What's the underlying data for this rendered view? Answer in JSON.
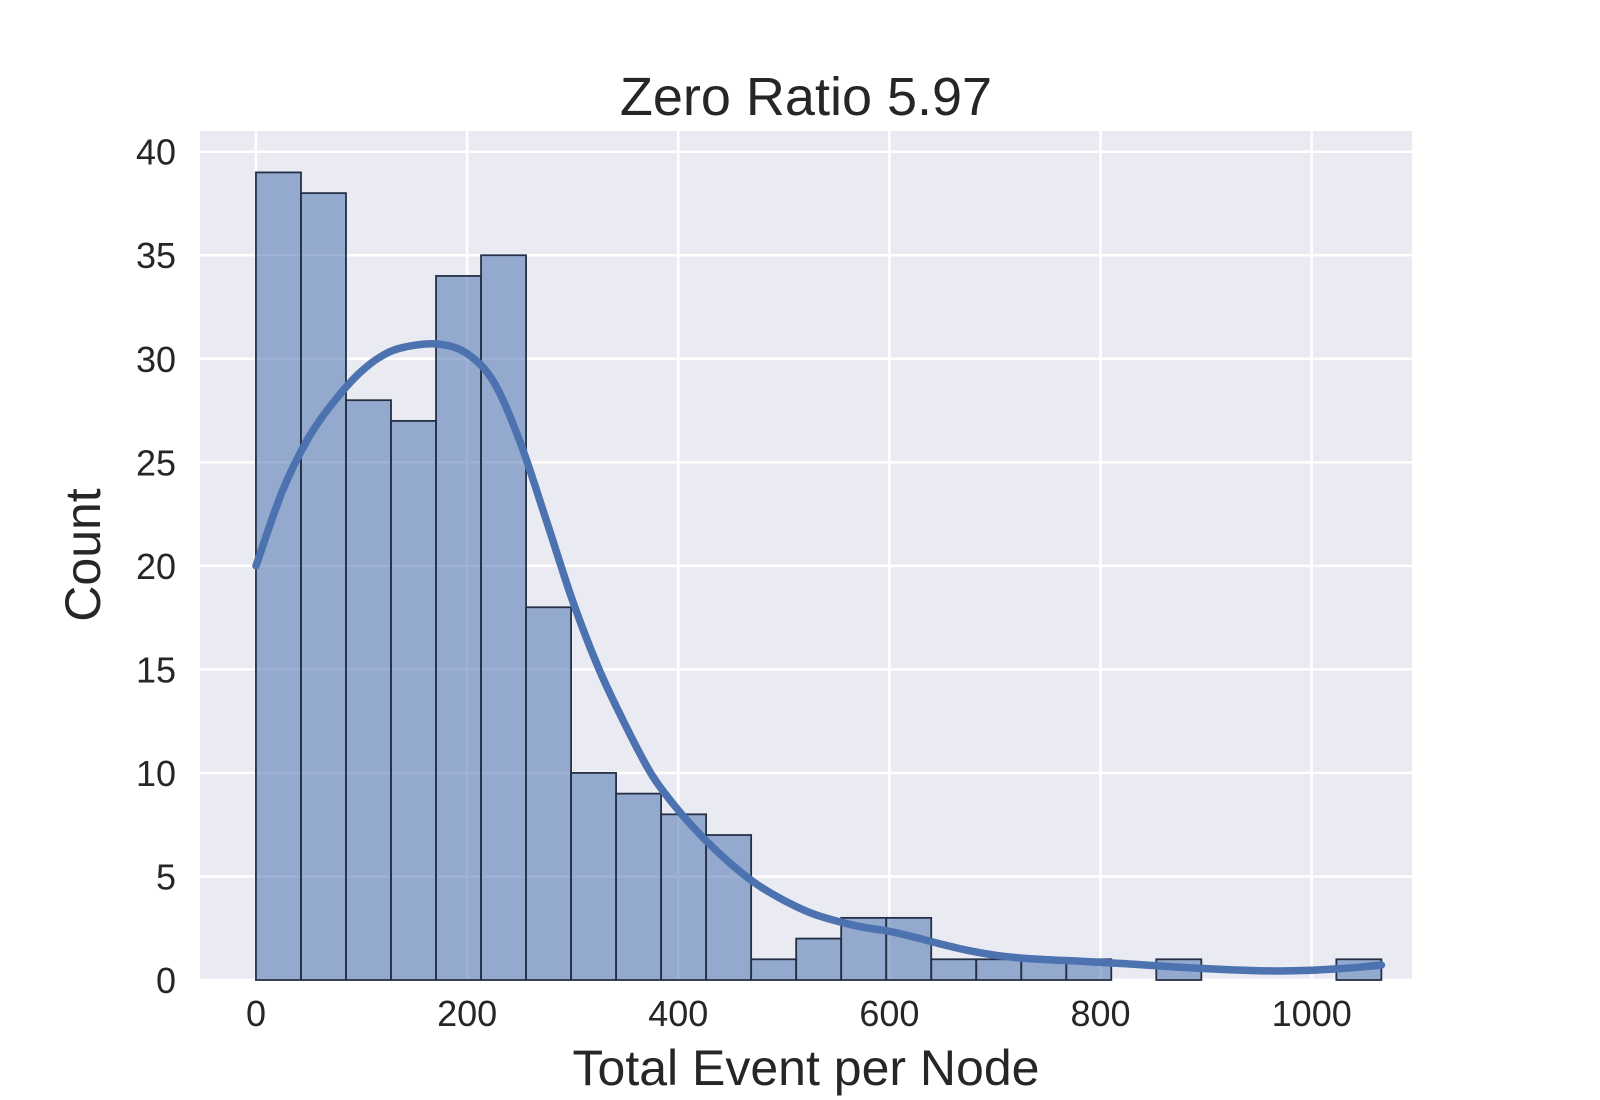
{
  "figure": {
    "background": "#ffffff"
  },
  "chart_data": {
    "type": "histogram+kde",
    "title": "Zero Ratio 5.97",
    "xlabel": "Total Event per Node",
    "ylabel": "Count",
    "xlim": [
      -53,
      1095
    ],
    "ylim": [
      0,
      41
    ],
    "x_ticks": [
      0,
      200,
      400,
      600,
      800,
      1000
    ],
    "y_ticks": [
      0,
      5,
      10,
      15,
      20,
      25,
      30,
      35,
      40
    ],
    "grid": true,
    "legend": "none",
    "style": {
      "axes_background": "#eaeaf2",
      "grid_color": "#ffffff",
      "bar_fill": "#4C72B0",
      "bar_fill_opacity": 0.55,
      "bar_edge_color": "#253046",
      "kde_color": "#4C72B0",
      "text_color": "#262626"
    },
    "histogram": {
      "bin_start": 0,
      "bin_width": 42.64,
      "counts": [
        39,
        38,
        28,
        27,
        34,
        35,
        18,
        10,
        9,
        8,
        7,
        1,
        2,
        3,
        3,
        1,
        1,
        1,
        1,
        0,
        1,
        0,
        0,
        0,
        1
      ]
    },
    "kde": {
      "points": [
        [
          0,
          20.0
        ],
        [
          25,
          23.6
        ],
        [
          50,
          26.2
        ],
        [
          75,
          28.0
        ],
        [
          100,
          29.4
        ],
        [
          125,
          30.3
        ],
        [
          150,
          30.65
        ],
        [
          175,
          30.7
        ],
        [
          200,
          30.25
        ],
        [
          225,
          28.9
        ],
        [
          250,
          26.0
        ],
        [
          275,
          22.2
        ],
        [
          300,
          18.3
        ],
        [
          325,
          15.0
        ],
        [
          350,
          12.3
        ],
        [
          375,
          9.9
        ],
        [
          400,
          8.2
        ],
        [
          425,
          6.8
        ],
        [
          450,
          5.6
        ],
        [
          475,
          4.6
        ],
        [
          500,
          3.85
        ],
        [
          525,
          3.25
        ],
        [
          550,
          2.85
        ],
        [
          575,
          2.55
        ],
        [
          600,
          2.35
        ],
        [
          625,
          2.05
        ],
        [
          650,
          1.72
        ],
        [
          675,
          1.42
        ],
        [
          700,
          1.2
        ],
        [
          725,
          1.06
        ],
        [
          750,
          0.98
        ],
        [
          775,
          0.92
        ],
        [
          800,
          0.85
        ],
        [
          825,
          0.78
        ],
        [
          850,
          0.7
        ],
        [
          875,
          0.62
        ],
        [
          900,
          0.55
        ],
        [
          925,
          0.49
        ],
        [
          950,
          0.45
        ],
        [
          975,
          0.44
        ],
        [
          1000,
          0.47
        ],
        [
          1025,
          0.54
        ],
        [
          1045,
          0.62
        ],
        [
          1066,
          0.72
        ]
      ]
    }
  }
}
